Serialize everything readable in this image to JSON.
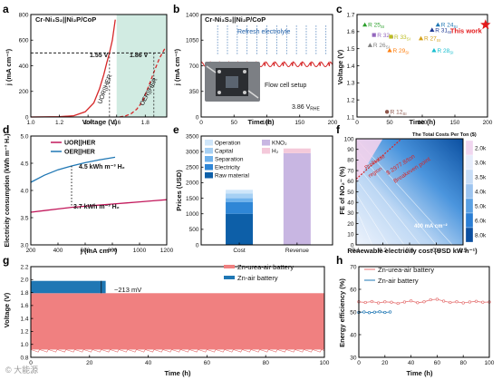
{
  "watermark": "© 大能源",
  "chart_data": [
    {
      "panel": "a",
      "type": "line",
      "title": "Cr-Ni₃S₂||Ni₂P/CoP",
      "xlabel": "Voltage (V)",
      "ylabel": "j (mA cm⁻²)",
      "xlim": [
        1.0,
        1.95
      ],
      "ylim": [
        0,
        800
      ],
      "xticks": [
        "1.0",
        "1.2",
        "1.4",
        "1.6",
        "1.8"
      ],
      "yticks": [
        "0",
        "200",
        "400",
        "600",
        "800"
      ],
      "series": [
        {
          "name": "UOR||HER",
          "color": "#d62728",
          "style": "solid",
          "x": [
            1.0,
            1.2,
            1.3,
            1.38,
            1.44,
            1.48,
            1.51,
            1.53,
            1.55,
            1.57,
            1.59
          ],
          "y": [
            0,
            2,
            10,
            40,
            110,
            220,
            330,
            420,
            500,
            600,
            760
          ]
        },
        {
          "name": "OER||HER",
          "color": "#d62728",
          "style": "dashed",
          "x": [
            1.62,
            1.66,
            1.7,
            1.74,
            1.78,
            1.82,
            1.86,
            1.9,
            1.94
          ],
          "y": [
            0,
            8,
            25,
            60,
            120,
            230,
            350,
            460,
            540
          ]
        }
      ],
      "hline": 500,
      "annotations": [
        "1.55 V",
        "1.86 V"
      ],
      "shade": [
        1.6,
        1.95
      ]
    },
    {
      "panel": "b",
      "type": "line",
      "title": "Cr-Ni₃S₂||Ni₂P/CoP",
      "xlabel": "Time (h)",
      "ylabel": "j (mA cm⁻²)",
      "xlim": [
        0,
        200
      ],
      "ylim": [
        0,
        1400
      ],
      "xticks": [
        "0",
        "50",
        "100",
        "150",
        "200"
      ],
      "yticks": [
        "0",
        "350",
        "700",
        "1050",
        "1400"
      ],
      "series": [
        {
          "name": "",
          "color": "#d62728",
          "x": [
            0,
            200
          ],
          "y": [
            720,
            720
          ],
          "amplitude": 55,
          "period": 14
        }
      ],
      "refresh_times": [
        25,
        40,
        55,
        70,
        85,
        100,
        115,
        130,
        145,
        160,
        175,
        190
      ],
      "labels": {
        "refresh": "Refresh electrolyte",
        "setup": "Flow cell setup",
        "voltage": "3.86 V",
        "voltage_sub": "RHE"
      }
    },
    {
      "panel": "c",
      "type": "scatter",
      "xlabel": "Time (h)",
      "ylabel": "Voltage (V)",
      "xlim": [
        0,
        200
      ],
      "ylim": [
        1.1,
        1.7
      ],
      "xticks": [
        "0",
        "50",
        "100",
        "150",
        "200"
      ],
      "yticks": [
        "1.1",
        "1.2",
        "1.3",
        "1.4",
        "1.5",
        "1.6",
        "1.7"
      ],
      "points": [
        {
          "label": "R 25",
          "sub": "SI",
          "x": 12,
          "y": 1.64,
          "color": "#2ca02c",
          "marker": "triangle"
        },
        {
          "label": "R 32",
          "sub": "SI",
          "x": 26,
          "y": 1.58,
          "color": "#9467bd",
          "marker": "square"
        },
        {
          "label": "R 26",
          "sub": "SI",
          "x": 20,
          "y": 1.52,
          "color": "#7f7f7f",
          "marker": "triangle"
        },
        {
          "label": "R 33",
          "sub": "SI",
          "x": 52,
          "y": 1.57,
          "color": "#bcbd22",
          "marker": "square"
        },
        {
          "label": "R 29",
          "sub": "SI",
          "x": 50,
          "y": 1.49,
          "color": "#ff7f0e",
          "marker": "triangle"
        },
        {
          "label": "R 31",
          "sub": "SI",
          "x": 115,
          "y": 1.61,
          "color": "#1f3a93",
          "marker": "triangle"
        },
        {
          "label": "R 24",
          "sub": "SI",
          "x": 124,
          "y": 1.64,
          "color": "#1f77b4",
          "marker": "triangle"
        },
        {
          "label": "R 27",
          "sub": "SI",
          "x": 98,
          "y": 1.56,
          "color": "#d4a017",
          "marker": "triangle"
        },
        {
          "label": "R 28",
          "sub": "SI",
          "x": 118,
          "y": 1.49,
          "color": "#17becf",
          "marker": "triangle"
        },
        {
          "label": "R 12",
          "sub": "SI",
          "x": 46,
          "y": 1.13,
          "color": "#8c564b",
          "marker": "circle"
        },
        {
          "label": "This work",
          "sub": "",
          "x": 197,
          "y": 1.64,
          "color": "#e31a1c",
          "marker": "star"
        }
      ]
    },
    {
      "panel": "d",
      "type": "line",
      "xlabel": "j (mA cm⁻²)",
      "ylabel": "Electricity consumption (kWh m⁻³ H₂)",
      "xlim": [
        200,
        1200
      ],
      "ylim": [
        3.0,
        5.0
      ],
      "xticks": [
        "200",
        "400",
        "600",
        "800",
        "1000",
        "1200"
      ],
      "yticks": [
        "3.0",
        "3.5",
        "4.0",
        "4.5",
        "5.0"
      ],
      "series": [
        {
          "name": "UOR||HER",
          "color": "#c2185b",
          "x": [
            200,
            300,
            400,
            500,
            600,
            700,
            800,
            900,
            1000,
            1100,
            1200
          ],
          "y": [
            3.6,
            3.63,
            3.66,
            3.69,
            3.71,
            3.73,
            3.75,
            3.77,
            3.79,
            3.81,
            3.83
          ]
        },
        {
          "name": "OER||HER",
          "color": "#1f77b4",
          "x": [
            200,
            300,
            400,
            500,
            600,
            700,
            820
          ],
          "y": [
            4.15,
            4.28,
            4.38,
            4.45,
            4.51,
            4.56,
            4.61
          ]
        }
      ],
      "annotations": [
        "4.5 kWh m⁻³ H₂",
        "3.7 kWh m⁻³ H₂"
      ],
      "marker_x": 500
    },
    {
      "panel": "e",
      "type": "bar",
      "xlabel": "",
      "ylabel": "Prices (USD)",
      "ylim": [
        0,
        3500
      ],
      "yticks": [
        "0",
        "500",
        "1000",
        "1500",
        "2000",
        "2500",
        "3000",
        "3500"
      ],
      "categories": [
        "Cost",
        "Revenue"
      ],
      "series": [
        {
          "name": "Raw material",
          "color": "#0d5fa8",
          "values": [
            1000,
            0
          ]
        },
        {
          "name": "Electricity",
          "color": "#2f86d6",
          "values": [
            380,
            0
          ]
        },
        {
          "name": "Separation",
          "color": "#6fb2ec",
          "values": [
            120,
            0
          ]
        },
        {
          "name": "Capital",
          "color": "#a6d0f4",
          "values": [
            150,
            0
          ]
        },
        {
          "name": "Operation",
          "color": "#cfe6fa",
          "values": [
            120,
            0
          ]
        },
        {
          "name": "KNO₂",
          "color": "#c8b6e2",
          "values": [
            0,
            2950
          ]
        },
        {
          "name": "H₂",
          "color": "#f4c9da",
          "values": [
            0,
            150
          ]
        }
      ]
    },
    {
      "panel": "f",
      "type": "heatmap",
      "title": "The Total Costs Per Ton ($)",
      "xlabel": "Renewable electricity cost (USD kW h⁻¹)",
      "ylabel": "FE of NO₂⁻ (%)",
      "xlim": [
        0.1,
        0.5
      ],
      "ylim": [
        0,
        100
      ],
      "xticks": [
        "0.1",
        "0.2",
        "0.3",
        "0.4",
        "0.5"
      ],
      "yticks": [
        "0",
        "10",
        "20",
        "30",
        "40",
        "50",
        "60",
        "70",
        "80",
        "90",
        "100"
      ],
      "colorbar": [
        "2.0k",
        "3.0k",
        "3.5k",
        "4.0k",
        "5.0k",
        "6.0k",
        "8.0k"
      ],
      "colors": [
        "#f0d6ef",
        "#e5ecfb",
        "#c6dcf6",
        "#9cc4ef",
        "#5aa0e3",
        "#2b7ed4",
        "#0b4fa0"
      ],
      "labels": {
        "breakeven": "Breakeven point",
        "price": "$ 2977.8/ton",
        "profitable": "Profitable",
        "region": "region",
        "current": "400 mA cm⁻²"
      }
    },
    {
      "panel": "g",
      "type": "line",
      "xlabel": "Time (h)",
      "ylabel": "Voltage (V)",
      "xlim": [
        0,
        100
      ],
      "ylim": [
        0.8,
        2.2
      ],
      "xticks": [
        "0",
        "20",
        "40",
        "60",
        "80",
        "100"
      ],
      "yticks": [
        "0.8",
        "1.0",
        "1.2",
        "1.4",
        "1.6",
        "1.8",
        "2.0",
        "2.2"
      ],
      "series": [
        {
          "name": "Zn-urea-air battery",
          "color": "#f08080",
          "x": [
            0,
            100
          ],
          "y_charge": 1.79,
          "y_discharge": 0.92
        },
        {
          "name": "Zn-air battery",
          "color": "#1f77b4",
          "x": [
            0,
            25.5
          ],
          "y_charge": 1.98,
          "y_discharge": 0.95
        }
      ],
      "annotation": "~213 mV"
    },
    {
      "panel": "h",
      "type": "line",
      "xlabel": "Time (h)",
      "ylabel": "Energy efficiency (%)",
      "xlim": [
        0,
        100
      ],
      "ylim": [
        30,
        70
      ],
      "xticks": [
        "0",
        "20",
        "40",
        "60",
        "80",
        "100"
      ],
      "yticks": [
        "30",
        "40",
        "50",
        "60",
        "70"
      ],
      "series": [
        {
          "name": "Zn-urea-air battery",
          "color": "#e57373",
          "x": [
            0,
            5,
            10,
            15,
            20,
            25,
            30,
            35,
            40,
            45,
            50,
            55,
            60,
            65,
            70,
            75,
            80,
            85,
            90,
            95,
            100
          ],
          "y": [
            54.5,
            54.2,
            54.6,
            54.0,
            54.5,
            54.3,
            53.8,
            54.4,
            54.9,
            54.1,
            54.5,
            55.4,
            55.6,
            54.8,
            54.2,
            54.5,
            54.0,
            54.4,
            54.7,
            54.3,
            54.4
          ]
        },
        {
          "name": "Zn-air battery",
          "color": "#1f77b4",
          "x": [
            0,
            4,
            8,
            12,
            16,
            20,
            24
          ],
          "y": [
            49.8,
            50.0,
            49.7,
            49.9,
            50.1,
            49.8,
            50.0
          ]
        }
      ]
    }
  ]
}
